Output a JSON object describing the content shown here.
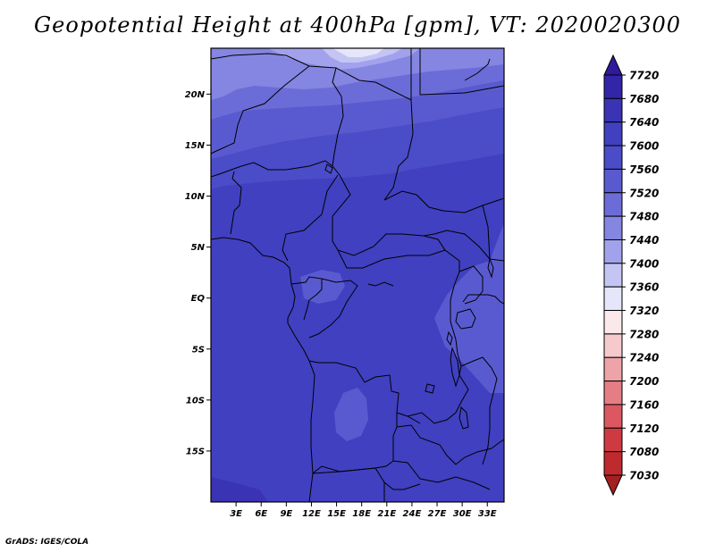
{
  "title": "Geopotential Height at 400hPa [gpm], VT: 2020020300",
  "credit": "GrADS: IGES/COLA",
  "map": {
    "lat_labels": [
      "20N",
      "15N",
      "10N",
      "5N",
      "EQ",
      "5S",
      "10S",
      "15S"
    ],
    "lat_values": [
      20,
      15,
      10,
      5,
      0,
      -5,
      -10,
      -15
    ],
    "lon_labels": [
      "3E",
      "6E",
      "9E",
      "12E",
      "15E",
      "18E",
      "21E",
      "24E",
      "27E",
      "30E",
      "33E"
    ],
    "lon_values": [
      3,
      6,
      9,
      12,
      15,
      18,
      21,
      24,
      27,
      30,
      33
    ],
    "lat_range": [
      -20,
      24.5
    ],
    "lon_range": [
      0,
      35
    ]
  },
  "colorbar": {
    "labels": [
      "7720",
      "7680",
      "7640",
      "7600",
      "7560",
      "7520",
      "7480",
      "7440",
      "7400",
      "7360",
      "7320",
      "7280",
      "7240",
      "7200",
      "7160",
      "7120",
      "7080",
      "7030"
    ],
    "colors": [
      "#2e1a9a",
      "#3325a8",
      "#3a33b4",
      "#4140c0",
      "#4b4cc8",
      "#5a5ad0",
      "#6c6cd8",
      "#8585e2",
      "#a2a2ec",
      "#c5c5f4",
      "#e6e6fb",
      "#fbe8ea",
      "#f6c9cc",
      "#eea3a8",
      "#e57e84",
      "#db5860",
      "#cf3a42",
      "#be2a2e",
      "#a51f22"
    ]
  },
  "colors": {
    "zone_7600": "#4140c0",
    "zone_7560": "#4b4cc8",
    "zone_7520": "#5a5ad0",
    "zone_7480": "#6c6cd8",
    "zone_7440": "#8585e2",
    "zone_7400": "#a2a2ec",
    "zone_7360": "#c5c5f4",
    "zone_7320": "#e6e6fb"
  }
}
